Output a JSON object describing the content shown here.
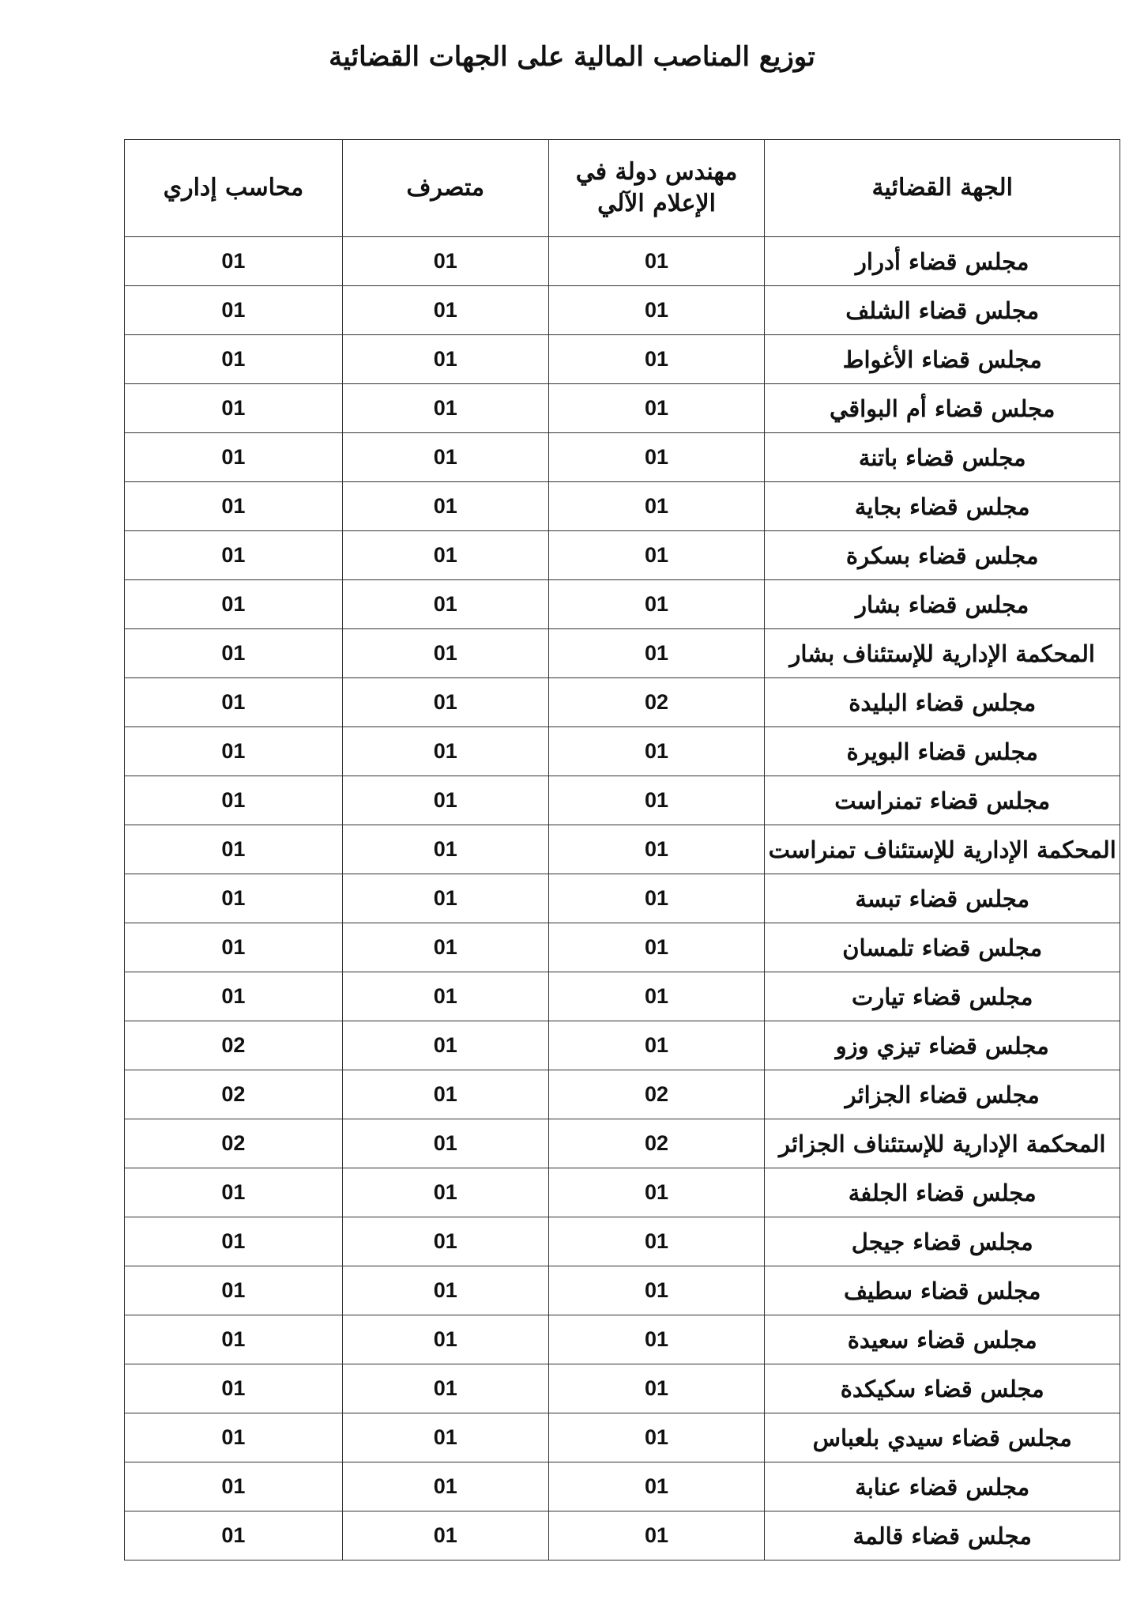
{
  "title": "توزيع المناصب المالية على الجهات القضائية",
  "headers": [
    "الجهة القضائية",
    "مهندس دولة في الإعلام الآلي",
    "متصرف",
    "محاسب إداري"
  ],
  "rows": [
    [
      "مجلس قضاء أدرار",
      "01",
      "01",
      "01"
    ],
    [
      "مجلس قضاء الشلف",
      "01",
      "01",
      "01"
    ],
    [
      "مجلس قضاء الأغواط",
      "01",
      "01",
      "01"
    ],
    [
      "مجلس قضاء أم البواقي",
      "01",
      "01",
      "01"
    ],
    [
      "مجلس قضاء باتنة",
      "01",
      "01",
      "01"
    ],
    [
      "مجلس قضاء بجاية",
      "01",
      "01",
      "01"
    ],
    [
      "مجلس قضاء بسكرة",
      "01",
      "01",
      "01"
    ],
    [
      "مجلس قضاء بشار",
      "01",
      "01",
      "01"
    ],
    [
      "المحكمة الإدارية للإستئناف بشار",
      "01",
      "01",
      "01"
    ],
    [
      "مجلس قضاء البليدة",
      "02",
      "01",
      "01"
    ],
    [
      "مجلس قضاء البويرة",
      "01",
      "01",
      "01"
    ],
    [
      "مجلس قضاء تمنراست",
      "01",
      "01",
      "01"
    ],
    [
      "المحكمة الإدارية للإستئناف تمنراست",
      "01",
      "01",
      "01"
    ],
    [
      "مجلس قضاء تبسة",
      "01",
      "01",
      "01"
    ],
    [
      "مجلس قضاء تلمسان",
      "01",
      "01",
      "01"
    ],
    [
      "مجلس قضاء تيارت",
      "01",
      "01",
      "01"
    ],
    [
      "مجلس قضاء تيزي وزو",
      "01",
      "01",
      "02"
    ],
    [
      "مجلس قضاء الجزائر",
      "02",
      "01",
      "02"
    ],
    [
      "المحكمة الإدارية للإستئناف الجزائر",
      "02",
      "01",
      "02"
    ],
    [
      "مجلس قضاء الجلفة",
      "01",
      "01",
      "01"
    ],
    [
      "مجلس قضاء جيجل",
      "01",
      "01",
      "01"
    ],
    [
      "مجلس قضاء سطيف",
      "01",
      "01",
      "01"
    ],
    [
      "مجلس قضاء سعيدة",
      "01",
      "01",
      "01"
    ],
    [
      "مجلس قضاء سكيكدة",
      "01",
      "01",
      "01"
    ],
    [
      "مجلس قضاء سيدي بلعباس",
      "01",
      "01",
      "01"
    ],
    [
      "مجلس قضاء عنابة",
      "01",
      "01",
      "01"
    ],
    [
      "مجلس قضاء قالمة",
      "01",
      "01",
      "01"
    ]
  ]
}
